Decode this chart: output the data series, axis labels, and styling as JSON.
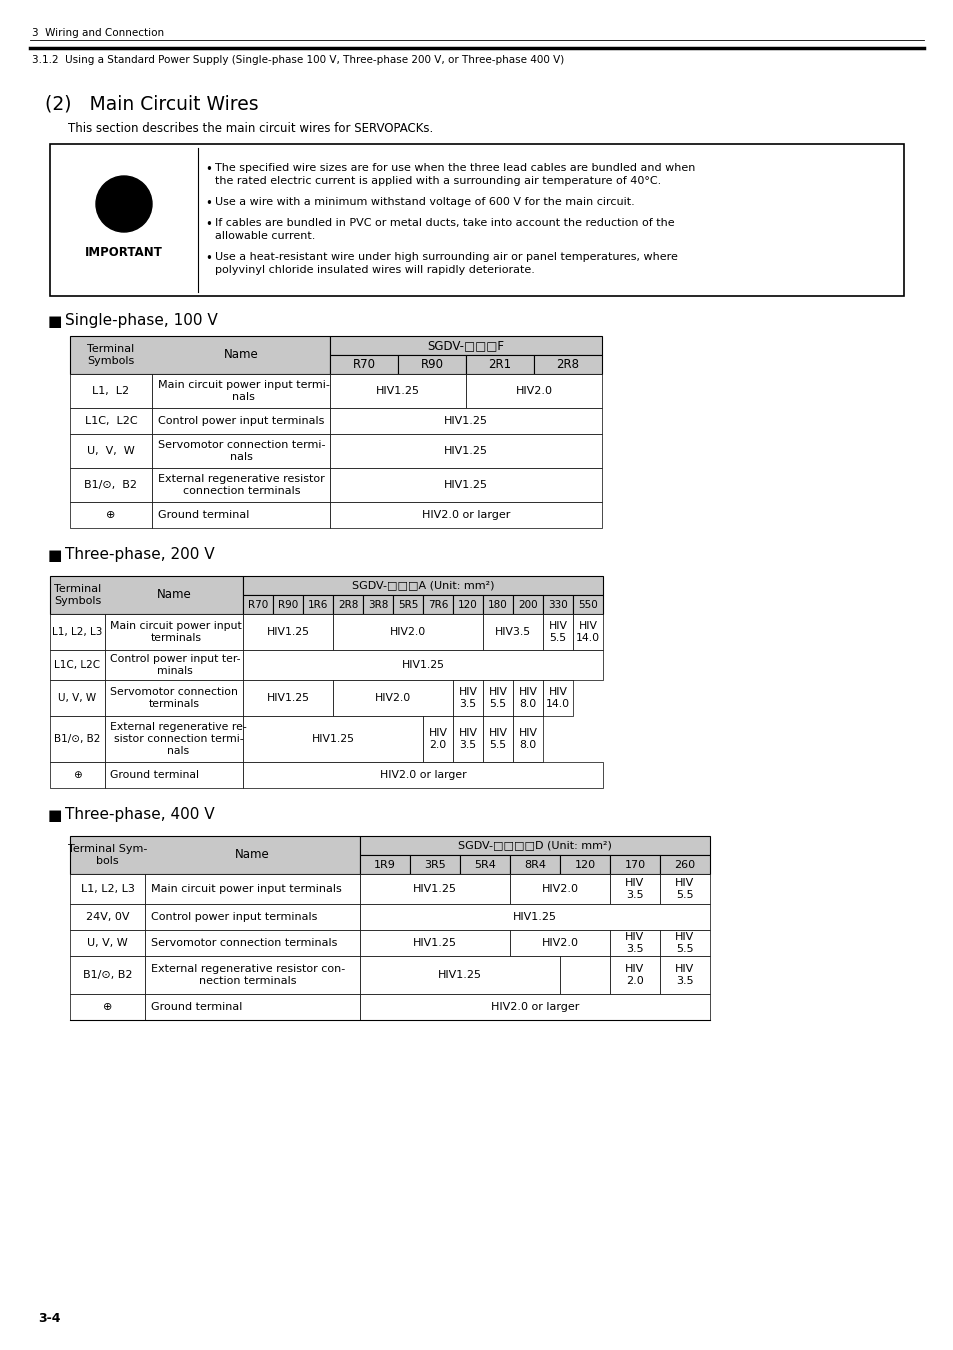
{
  "page_header_left": "3  Wiring and Connection",
  "page_subheader": "3.1.2  Using a Standard Power Supply (Single-phase 100 V, Three-phase 200 V, or Three-phase 400 V)",
  "section_title": "(2)   Main Circuit Wires",
  "section_intro": "This section describes the main circuit wires for SERVOPACKs.",
  "important_bullets": [
    "The specified wire sizes are for use when the three lead cables are bundled and when\nthe rated electric current is applied with a surrounding air temperature of 40°C.",
    "Use a wire with a minimum withstand voltage of 600 V for the main circuit.",
    "If cables are bundled in PVC or metal ducts, take into account the reduction of the\nallowable current.",
    "Use a heat-resistant wire under high surrounding air or panel temperatures, where\npolyvinyl chloride insulated wires will rapidly deteriorate."
  ],
  "table1_title": "Single-phase, 100 V",
  "table1_header1": "SGDV-□□□F",
  "table2_title": "Three-phase, 200 V",
  "table2_header1": "SGDV-□□□A (Unit: mm²)",
  "table3_title": "Three-phase, 400 V",
  "table3_header1": "SGDV-□□□□D (Unit: mm²)",
  "page_number": "3-4",
  "bg_color": "#ffffff",
  "table_header_bg": "#c8c8c8",
  "border_color": "#000000"
}
